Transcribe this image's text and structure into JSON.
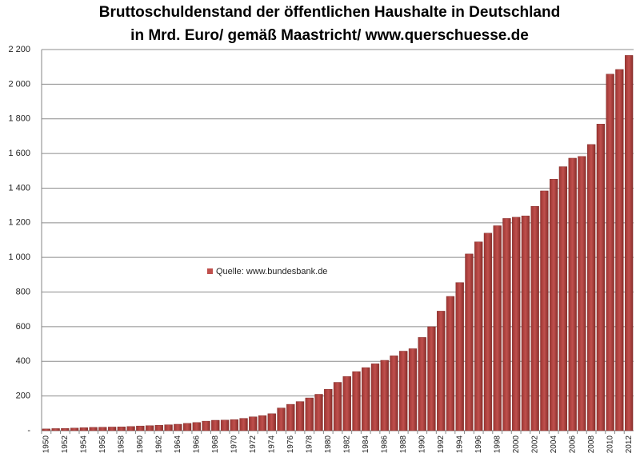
{
  "chart_data": {
    "type": "bar",
    "title": [
      "Bruttoschuldenstand  der öffentlichen Haushalte  in Deutschland",
      "in Mrd. Euro/ gemäß Maastricht/ www.querschuesse.de"
    ],
    "categories": [
      "1950",
      null,
      "1952",
      null,
      "1954",
      null,
      "1956",
      null,
      "1958",
      null,
      "1960",
      null,
      "1962",
      null,
      "1964",
      null,
      "1966",
      null,
      "1968",
      null,
      "1970",
      null,
      "1972",
      null,
      "1974",
      null,
      "1976",
      null,
      "1978",
      null,
      "1980",
      null,
      "1982",
      null,
      "1984",
      null,
      "1986",
      null,
      "1988",
      null,
      "1990",
      null,
      "1992",
      null,
      "1994",
      null,
      "1996",
      null,
      "1998",
      null,
      "2000",
      null,
      "2002",
      null,
      "2004",
      null,
      "2006",
      null,
      "2008",
      null,
      "2010",
      null,
      "2012"
    ],
    "series": [
      {
        "name": "Quelle: www.bundesbank.de",
        "color": "#c0504d",
        "values": [
          10,
          12,
          13,
          15,
          17,
          19,
          20,
          21,
          22,
          24,
          27,
          29,
          31,
          34,
          37,
          42,
          47,
          55,
          60,
          61,
          64,
          71,
          80,
          87,
          98,
          131,
          152,
          168,
          189,
          210,
          239,
          279,
          313,
          341,
          364,
          386,
          406,
          432,
          459,
          473,
          538,
          600,
          690,
          775,
          855,
          1020,
          1090,
          1140,
          1183,
          1225,
          1232,
          1240,
          1295,
          1384,
          1452,
          1524,
          1573,
          1583,
          1652,
          1770,
          2058,
          2085,
          2166
        ]
      }
    ],
    "ylim": [
      0,
      2200
    ],
    "yticks": [
      {
        "value": 0,
        "label": "-"
      },
      200,
      400,
      600,
      800,
      {
        "value": 1000,
        "label": "1 000"
      },
      {
        "value": 1200,
        "label": "1 200"
      },
      {
        "value": 1400,
        "label": "1 400"
      },
      {
        "value": 1600,
        "label": "1 600"
      },
      {
        "value": 1800,
        "label": "1 800"
      },
      {
        "value": 2000,
        "label": "2 000"
      },
      {
        "value": 2200,
        "label": "2 200"
      }
    ],
    "grid": true
  }
}
